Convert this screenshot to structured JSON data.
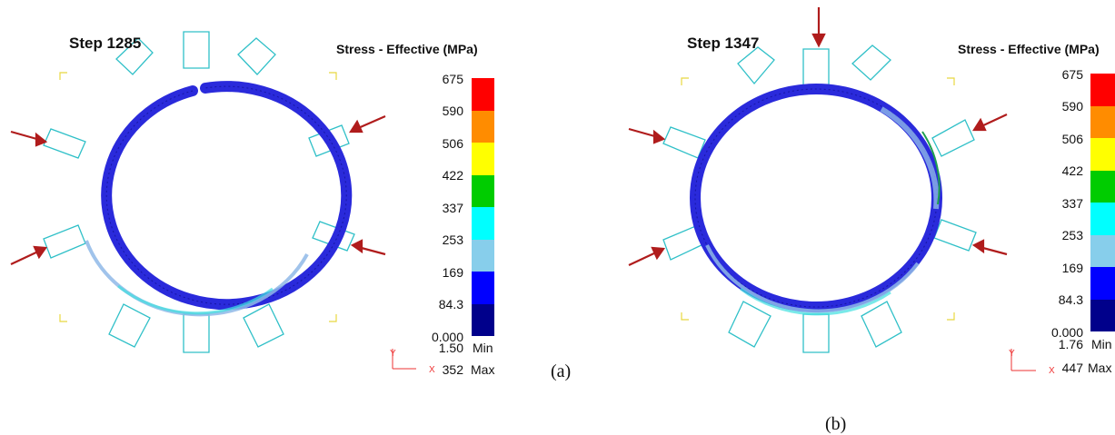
{
  "panels": [
    {
      "id": "a",
      "step_label": "Step 1285",
      "legend_title": "Stress - Effective (MPa)",
      "legend_ticks": [
        "675",
        "590",
        "506",
        "422",
        "337",
        "253",
        "169",
        "84.3",
        "0.000"
      ],
      "legend_colors": [
        "#ff0000",
        "#ff8c00",
        "#ffff00",
        "#00cc00",
        "#00ffff",
        "#87ceeb",
        "#0000ff",
        "#00008b"
      ],
      "min_value": "1.50",
      "min_label": "Min",
      "max_value": "352",
      "max_label": "Max",
      "axis_y": "Y",
      "axis_x": "X",
      "caption": "(a)"
    },
    {
      "id": "b",
      "step_label": "Step 1347",
      "legend_title": "Stress - Effective (MPa)",
      "legend_ticks": [
        "675",
        "590",
        "506",
        "422",
        "337",
        "253",
        "169",
        "84.3",
        "0.000"
      ],
      "legend_colors": [
        "#ff0000",
        "#ff8c00",
        "#ffff00",
        "#00cc00",
        "#00ffff",
        "#87ceeb",
        "#0000ff",
        "#00008b"
      ],
      "min_value": "1.76",
      "min_label": "Min",
      "max_value": "447",
      "max_label": "Max",
      "axis_y": "Y",
      "axis_x": "X",
      "caption": "(b)"
    }
  ],
  "colors": {
    "ring": "#2a2adb",
    "ring_light": "#8fb8e8",
    "die": "#30c0c8",
    "arrow": "#b01c1c",
    "corner": "#e8d840"
  }
}
